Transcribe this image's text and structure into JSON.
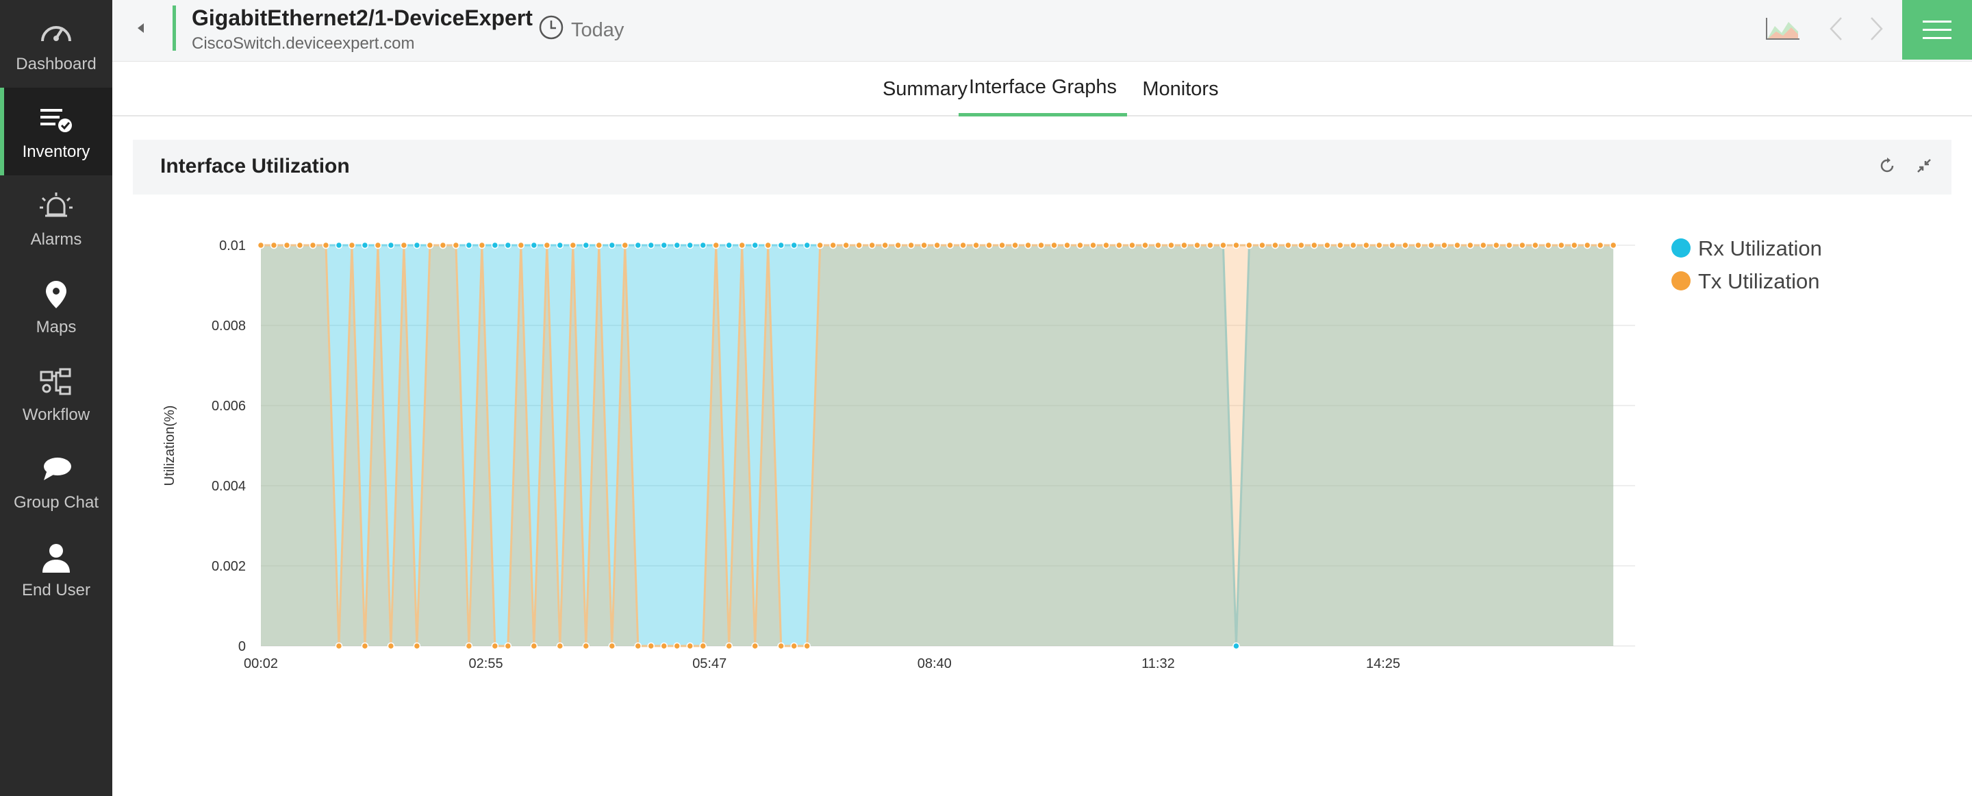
{
  "sidebar": {
    "items": [
      {
        "label": "Dashboard",
        "icon": "gauge-icon",
        "active": false
      },
      {
        "label": "Inventory",
        "icon": "inventory-check-icon",
        "active": true
      },
      {
        "label": "Alarms",
        "icon": "alarm-bell-icon",
        "active": false
      },
      {
        "label": "Maps",
        "icon": "map-pin-icon",
        "active": false
      },
      {
        "label": "Workflow",
        "icon": "workflow-icon",
        "active": false
      },
      {
        "label": "Group Chat",
        "icon": "chat-bubbles-icon",
        "active": false
      },
      {
        "label": "End User",
        "icon": "user-icon",
        "active": false
      }
    ]
  },
  "header": {
    "title": "GigabitEthernet2/1-DeviceExpert",
    "subtitle": "CiscoSwitch.deviceexpert.com",
    "period": "Today",
    "accent_color": "#5ac47a"
  },
  "tabs": [
    {
      "label": "Summary",
      "active": false
    },
    {
      "label": "Interface Graphs",
      "active": true
    },
    {
      "label": "Monitors",
      "active": false
    }
  ],
  "panel": {
    "title": "Interface Utilization"
  },
  "chart_data": {
    "type": "area",
    "title": "",
    "xlabel": "",
    "ylabel": "Utilization(%)",
    "ylim": [
      0,
      0.01
    ],
    "yticks": [
      "0",
      "0.002",
      "0.004",
      "0.006",
      "0.008",
      "0.01"
    ],
    "xticks": [
      "00:02",
      "02:55",
      "05:47",
      "08:40",
      "11:32",
      "14:25"
    ],
    "x": [
      "00:02",
      "00:12",
      "00:22",
      "00:32",
      "00:42",
      "00:52",
      "01:02",
      "01:12",
      "01:22",
      "01:32",
      "01:42",
      "01:52",
      "02:02",
      "02:12",
      "02:22",
      "02:32",
      "02:42",
      "02:52",
      "03:02",
      "03:12",
      "03:22",
      "03:32",
      "03:42",
      "03:52",
      "04:02",
      "04:12",
      "04:22",
      "04:32",
      "04:42",
      "04:52",
      "05:02",
      "05:12",
      "05:22",
      "05:32",
      "05:42",
      "05:52",
      "06:02",
      "06:12",
      "06:22",
      "06:32",
      "06:42",
      "06:52",
      "07:02",
      "07:12",
      "07:22",
      "07:32",
      "07:42",
      "07:52",
      "08:02",
      "08:12",
      "08:22",
      "08:32",
      "08:42",
      "08:52",
      "09:02",
      "09:12",
      "09:22",
      "09:32",
      "09:42",
      "09:52",
      "10:02",
      "10:12",
      "10:22",
      "10:32",
      "10:42",
      "10:52",
      "11:02",
      "11:12",
      "11:22",
      "11:32",
      "11:42",
      "11:52",
      "12:02",
      "12:12",
      "12:22",
      "12:32",
      "12:42",
      "12:52",
      "13:02",
      "13:12",
      "13:22",
      "13:32",
      "13:42",
      "13:52",
      "14:02",
      "14:12",
      "14:22",
      "14:32",
      "14:42",
      "14:52",
      "15:02",
      "15:12",
      "15:22",
      "15:32",
      "15:42",
      "15:52",
      "16:02",
      "16:12",
      "16:22",
      "16:32",
      "16:42",
      "16:52",
      "17:02",
      "17:12",
      "17:22"
    ],
    "series": [
      {
        "name": "Rx Utilization",
        "color": "#1ebfe3",
        "values": [
          0.01,
          0.01,
          0.01,
          0.01,
          0.01,
          0.01,
          0.01,
          0.01,
          0.01,
          0.01,
          0.01,
          0.01,
          0.01,
          0.01,
          0.01,
          0.01,
          0.01,
          0.01,
          0.01,
          0.01,
          0.01,
          0.01,
          0.01,
          0.01,
          0.01,
          0.01,
          0.01,
          0.01,
          0.01,
          0.01,
          0.01,
          0.01,
          0.01,
          0.01,
          0.01,
          0.01,
          0.01,
          0.01,
          0.01,
          0.01,
          0.01,
          0.01,
          0.01,
          0.01,
          0.01,
          0.01,
          0.01,
          0.01,
          0.01,
          0.01,
          0.01,
          0.01,
          0.01,
          0.01,
          0.01,
          0.01,
          0.01,
          0.01,
          0.01,
          0.01,
          0.01,
          0.01,
          0.01,
          0.01,
          0.01,
          0.01,
          0.01,
          0.01,
          0.01,
          0.01,
          0.01,
          0.01,
          0.01,
          0.01,
          0.01,
          0,
          0.01,
          0.01,
          0.01,
          0.01,
          0.01,
          0.01,
          0.01,
          0.01,
          0.01,
          0.01,
          0.01,
          0.01,
          0.01,
          0.01,
          0.01,
          0.01,
          0.01,
          0.01,
          0.01,
          0.01,
          0.01,
          0.01,
          0.01,
          0.01,
          0.01,
          0.01,
          0.01,
          0.01,
          0.01
        ]
      },
      {
        "name": "Tx Utilization",
        "color": "#f5a13a",
        "values": [
          0.01,
          0.01,
          0.01,
          0.01,
          0.01,
          0.01,
          0,
          0.01,
          0,
          0.01,
          0,
          0.01,
          0,
          0.01,
          0.01,
          0.01,
          0,
          0.01,
          0,
          0,
          0.01,
          0,
          0.01,
          0,
          0.01,
          0,
          0.01,
          0,
          0.01,
          0,
          0,
          0,
          0,
          0,
          0,
          0.01,
          0,
          0.01,
          0,
          0.01,
          0,
          0,
          0,
          0.01,
          0.01,
          0.01,
          0.01,
          0.01,
          0.01,
          0.01,
          0.01,
          0.01,
          0.01,
          0.01,
          0.01,
          0.01,
          0.01,
          0.01,
          0.01,
          0.01,
          0.01,
          0.01,
          0.01,
          0.01,
          0.01,
          0.01,
          0.01,
          0.01,
          0.01,
          0.01,
          0.01,
          0.01,
          0.01,
          0.01,
          0.01,
          0.01,
          0.01,
          0.01,
          0.01,
          0.01,
          0.01,
          0.01,
          0.01,
          0.01,
          0.01,
          0.01,
          0.01,
          0.01,
          0.01,
          0.01,
          0.01,
          0.01,
          0.01,
          0.01,
          0.01,
          0.01,
          0.01,
          0.01,
          0.01,
          0.01,
          0.01,
          0.01,
          0.01,
          0.01,
          0.01
        ]
      }
    ],
    "grid": true,
    "legend_position": "top-right"
  }
}
